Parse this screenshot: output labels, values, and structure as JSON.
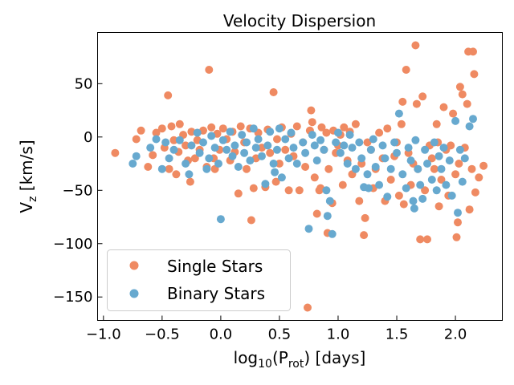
{
  "chart_data": {
    "type": "scatter",
    "title": "Velocity Dispersion",
    "xlabel": {
      "base": "log",
      "sub": "10",
      "mid": "(P",
      "sub2": "rot",
      "tail": ") [days]"
    },
    "ylabel": {
      "base": "V",
      "sub": "z",
      "tail": " [km/s]"
    },
    "xlim": [
      -1.05,
      2.4
    ],
    "ylim": [
      -172,
      98
    ],
    "xticks": [
      -1.0,
      -0.5,
      0.0,
      0.5,
      1.0,
      1.5,
      2.0
    ],
    "xtick_labels": [
      "−1.0",
      "−0.5",
      "0.0",
      "0.5",
      "1.0",
      "1.5",
      "2.0"
    ],
    "yticks": [
      50,
      0,
      -50,
      -100,
      -150
    ],
    "ytick_labels": [
      "50",
      "0",
      "−50",
      "−100",
      "−150"
    ],
    "grid": false,
    "legend_position": "lower-left",
    "series": [
      {
        "name": "Single Stars",
        "color": "#ef8a62",
        "points": [
          [
            -0.9,
            -15
          ],
          [
            -0.72,
            -2
          ],
          [
            -0.68,
            6
          ],
          [
            -0.62,
            -28
          ],
          [
            -0.58,
            -17
          ],
          [
            -0.55,
            4
          ],
          [
            -0.5,
            8
          ],
          [
            -0.48,
            -10
          ],
          [
            -0.45,
            39
          ],
          [
            -0.44,
            -30
          ],
          [
            -0.42,
            10
          ],
          [
            -0.4,
            -3
          ],
          [
            -0.38,
            -35
          ],
          [
            -0.36,
            -14
          ],
          [
            -0.35,
            12
          ],
          [
            -0.32,
            2
          ],
          [
            -0.3,
            -8
          ],
          [
            -0.28,
            -22
          ],
          [
            -0.26,
            -42
          ],
          [
            -0.25,
            5
          ],
          [
            -0.22,
            -20
          ],
          [
            -0.2,
            -3
          ],
          [
            -0.18,
            -12
          ],
          [
            -0.15,
            6
          ],
          [
            -0.12,
            -28
          ],
          [
            -0.1,
            63
          ],
          [
            -0.08,
            9
          ],
          [
            -0.06,
            -20
          ],
          [
            -0.05,
            -30
          ],
          [
            -0.03,
            3
          ],
          [
            -0.01,
            -12
          ],
          [
            0.02,
            8
          ],
          [
            0.05,
            -2
          ],
          [
            0.08,
            -22
          ],
          [
            0.1,
            5
          ],
          [
            0.12,
            -14
          ],
          [
            0.15,
            -53
          ],
          [
            0.17,
            10
          ],
          [
            0.2,
            -5
          ],
          [
            0.22,
            -30
          ],
          [
            0.25,
            8
          ],
          [
            0.26,
            -78
          ],
          [
            0.28,
            -48
          ],
          [
            0.3,
            -20
          ],
          [
            0.32,
            4
          ],
          [
            0.35,
            -10
          ],
          [
            0.38,
            -47
          ],
          [
            0.4,
            7
          ],
          [
            0.42,
            -15
          ],
          [
            0.45,
            42
          ],
          [
            0.47,
            -42
          ],
          [
            0.48,
            -2
          ],
          [
            0.5,
            -25
          ],
          [
            0.52,
            9
          ],
          [
            0.55,
            -12
          ],
          [
            0.58,
            -50
          ],
          [
            0.6,
            3
          ],
          [
            0.62,
            -18
          ],
          [
            0.65,
            10
          ],
          [
            0.67,
            -50
          ],
          [
            0.7,
            -5
          ],
          [
            0.72,
            -28
          ],
          [
            0.74,
            -160
          ],
          [
            0.76,
            6
          ],
          [
            0.77,
            25
          ],
          [
            0.78,
            14
          ],
          [
            0.8,
            -38
          ],
          [
            0.82,
            -72
          ],
          [
            0.84,
            -50
          ],
          [
            0.85,
            -48
          ],
          [
            0.86,
            9
          ],
          [
            0.88,
            -12
          ],
          [
            0.9,
            4
          ],
          [
            0.91,
            -90
          ],
          [
            0.92,
            -30
          ],
          [
            0.95,
            -62
          ],
          [
            0.96,
            6
          ],
          [
            0.98,
            -15
          ],
          [
            1.0,
            -8
          ],
          [
            1.02,
            2
          ],
          [
            1.04,
            -45
          ],
          [
            1.05,
            9
          ],
          [
            1.08,
            -22
          ],
          [
            1.1,
            5
          ],
          [
            1.12,
            -35
          ],
          [
            1.15,
            12
          ],
          [
            1.18,
            -60
          ],
          [
            1.2,
            -25
          ],
          [
            1.22,
            -92
          ],
          [
            1.23,
            -76
          ],
          [
            1.25,
            -5
          ],
          [
            1.28,
            -12
          ],
          [
            1.3,
            -48
          ],
          [
            1.32,
            -30
          ],
          [
            1.35,
            4
          ],
          [
            1.38,
            -20
          ],
          [
            1.4,
            -60
          ],
          [
            1.42,
            8
          ],
          [
            1.45,
            -40
          ],
          [
            1.48,
            -18
          ],
          [
            1.5,
            -5
          ],
          [
            1.52,
            -55
          ],
          [
            1.54,
            12
          ],
          [
            1.55,
            33
          ],
          [
            1.56,
            -63
          ],
          [
            1.58,
            63
          ],
          [
            1.6,
            -15
          ],
          [
            1.62,
            -45
          ],
          [
            1.64,
            -25
          ],
          [
            1.66,
            86
          ],
          [
            1.67,
            31
          ],
          [
            1.68,
            -30
          ],
          [
            1.7,
            -96
          ],
          [
            1.72,
            38
          ],
          [
            1.74,
            -50
          ],
          [
            1.76,
            -96
          ],
          [
            1.78,
            -8
          ],
          [
            1.8,
            -20
          ],
          [
            1.82,
            -30
          ],
          [
            1.84,
            12
          ],
          [
            1.85,
            -5
          ],
          [
            1.86,
            -65
          ],
          [
            1.88,
            -40
          ],
          [
            1.9,
            28
          ],
          [
            1.92,
            -12
          ],
          [
            1.94,
            -55
          ],
          [
            1.96,
            -8
          ],
          [
            1.98,
            22
          ],
          [
            2.0,
            -35
          ],
          [
            2.01,
            -94
          ],
          [
            2.02,
            -80
          ],
          [
            2.03,
            -25
          ],
          [
            2.04,
            47
          ],
          [
            2.06,
            40
          ],
          [
            2.08,
            -10
          ],
          [
            2.1,
            31
          ],
          [
            2.11,
            80
          ],
          [
            2.12,
            -68
          ],
          [
            2.14,
            -30
          ],
          [
            2.15,
            80
          ],
          [
            2.16,
            59
          ],
          [
            2.17,
            -52
          ],
          [
            2.2,
            -38
          ],
          [
            2.24,
            -27
          ]
        ]
      },
      {
        "name": "Binary Stars",
        "color": "#67a9cf",
        "points": [
          [
            -0.75,
            -25
          ],
          [
            -0.72,
            -18
          ],
          [
            -0.6,
            -10
          ],
          [
            -0.55,
            -2
          ],
          [
            -0.5,
            -30
          ],
          [
            -0.47,
            -5
          ],
          [
            -0.44,
            -20
          ],
          [
            -0.4,
            -12
          ],
          [
            -0.35,
            -3
          ],
          [
            -0.3,
            -25
          ],
          [
            -0.27,
            -35
          ],
          [
            -0.25,
            -8
          ],
          [
            -0.2,
            4
          ],
          [
            -0.18,
            -15
          ],
          [
            -0.15,
            -5
          ],
          [
            -0.12,
            -30
          ],
          [
            -0.1,
            -20
          ],
          [
            -0.08,
            1
          ],
          [
            -0.05,
            -10
          ],
          [
            -0.02,
            -25
          ],
          [
            0.0,
            -77
          ],
          [
            0.02,
            -3
          ],
          [
            0.05,
            -12
          ],
          [
            0.08,
            5
          ],
          [
            0.1,
            -18
          ],
          [
            0.12,
            -8
          ],
          [
            0.15,
            -28
          ],
          [
            0.18,
            2
          ],
          [
            0.2,
            -15
          ],
          [
            0.22,
            -5
          ],
          [
            0.25,
            -22
          ],
          [
            0.28,
            8
          ],
          [
            0.3,
            -10
          ],
          [
            0.32,
            -2
          ],
          [
            0.35,
            -18
          ],
          [
            0.38,
            -44
          ],
          [
            0.4,
            -8
          ],
          [
            0.42,
            5
          ],
          [
            0.45,
            -25
          ],
          [
            0.46,
            -33
          ],
          [
            0.48,
            -12
          ],
          [
            0.5,
            8
          ],
          [
            0.52,
            -38
          ],
          [
            0.55,
            -2
          ],
          [
            0.58,
            -20
          ],
          [
            0.6,
            4
          ],
          [
            0.62,
            -10
          ],
          [
            0.65,
            -25
          ],
          [
            0.7,
            -5
          ],
          [
            0.72,
            -15
          ],
          [
            0.75,
            -86
          ],
          [
            0.78,
            2
          ],
          [
            0.8,
            -8
          ],
          [
            0.82,
            -22
          ],
          [
            0.85,
            -3
          ],
          [
            0.88,
            -12
          ],
          [
            0.9,
            -50
          ],
          [
            0.91,
            -74
          ],
          [
            0.93,
            -60
          ],
          [
            0.95,
            -91
          ],
          [
            0.98,
            -5
          ],
          [
            1.0,
            4
          ],
          [
            1.02,
            -15
          ],
          [
            1.05,
            -8
          ],
          [
            1.08,
            -25
          ],
          [
            1.1,
            2
          ],
          [
            1.12,
            -10
          ],
          [
            1.15,
            -30
          ],
          [
            1.18,
            -5
          ],
          [
            1.2,
            -20
          ],
          [
            1.22,
            -47
          ],
          [
            1.25,
            -35
          ],
          [
            1.26,
            -48
          ],
          [
            1.28,
            -12
          ],
          [
            1.3,
            -2
          ],
          [
            1.32,
            -28
          ],
          [
            1.35,
            -45
          ],
          [
            1.38,
            -8
          ],
          [
            1.4,
            -20
          ],
          [
            1.42,
            -56
          ],
          [
            1.45,
            -30
          ],
          [
            1.48,
            -5
          ],
          [
            1.5,
            -15
          ],
          [
            1.52,
            22
          ],
          [
            1.55,
            -35
          ],
          [
            1.58,
            -48
          ],
          [
            1.6,
            -10
          ],
          [
            1.62,
            -22
          ],
          [
            1.64,
            -60
          ],
          [
            1.65,
            -67
          ],
          [
            1.66,
            -3
          ],
          [
            1.68,
            -30
          ],
          [
            1.7,
            -45
          ],
          [
            1.72,
            -58
          ],
          [
            1.74,
            -12
          ],
          [
            1.76,
            -25
          ],
          [
            1.8,
            -40
          ],
          [
            1.82,
            -5
          ],
          [
            1.84,
            -50
          ],
          [
            1.86,
            -18
          ],
          [
            1.88,
            -30
          ],
          [
            1.9,
            -10
          ],
          [
            1.92,
            -45
          ],
          [
            1.95,
            -22
          ],
          [
            1.97,
            -55
          ],
          [
            2.0,
            15
          ],
          [
            2.02,
            -71
          ],
          [
            2.04,
            -12
          ],
          [
            2.06,
            -42
          ],
          [
            2.08,
            -20
          ],
          [
            2.12,
            10
          ],
          [
            2.15,
            17
          ]
        ]
      }
    ]
  }
}
